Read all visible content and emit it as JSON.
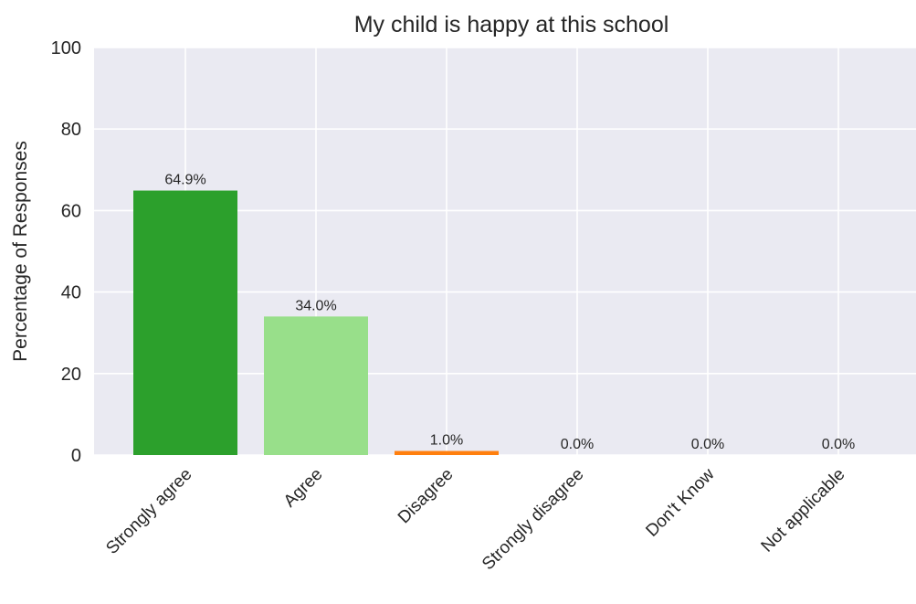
{
  "chart_data": {
    "type": "bar",
    "title": "My child is happy at this school",
    "xlabel": "",
    "ylabel": "Percentage of Responses",
    "ylim": [
      0,
      100
    ],
    "yticks": [
      0,
      20,
      40,
      60,
      80,
      100
    ],
    "grid": true,
    "categories": [
      "Strongly agree",
      "Agree",
      "Disagree",
      "Strongly disagree",
      "Don't Know",
      "Not applicable"
    ],
    "values": [
      64.9,
      34.0,
      1.0,
      0.0,
      0.0,
      0.0
    ],
    "data_labels": [
      "64.9%",
      "34.0%",
      "1.0%",
      "0.0%",
      "0.0%",
      "0.0%"
    ],
    "colors": [
      "#2CA02C",
      "#98DF8A",
      "#FF7F0E",
      "#FFBB78",
      "#D62728",
      "#FF9896"
    ],
    "background_color": "#EAEAF2"
  }
}
